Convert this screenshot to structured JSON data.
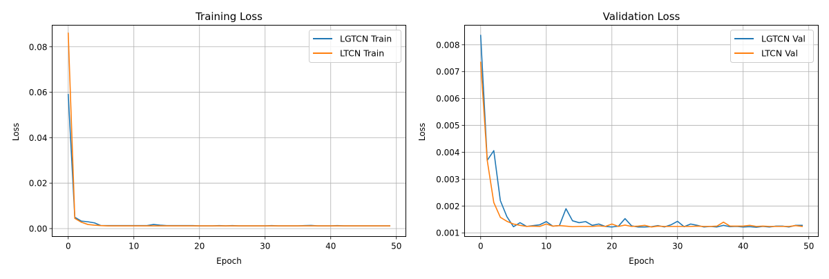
{
  "chart_data": [
    {
      "type": "line",
      "title": "Training Loss",
      "xlabel": "Epoch",
      "ylabel": "Loss",
      "xlim": [
        -2.45,
        51.45
      ],
      "ylim": [
        -0.0035,
        0.0895
      ],
      "xticks": [
        0,
        10,
        20,
        30,
        40,
        50
      ],
      "xtick_labels": [
        "0",
        "10",
        "20",
        "30",
        "40",
        "50"
      ],
      "yticks": [
        0,
        0.02,
        0.04,
        0.06,
        0.08
      ],
      "ytick_labels": [
        "0.00",
        "0.02",
        "0.04",
        "0.06",
        "0.08"
      ],
      "grid": true,
      "legend_position": "top-right",
      "x": [
        0,
        1,
        2,
        3,
        4,
        5,
        6,
        7,
        8,
        9,
        10,
        11,
        12,
        13,
        14,
        15,
        16,
        17,
        18,
        19,
        20,
        21,
        22,
        23,
        24,
        25,
        26,
        27,
        28,
        29,
        30,
        31,
        32,
        33,
        34,
        35,
        36,
        37,
        38,
        39,
        40,
        41,
        42,
        43,
        44,
        45,
        46,
        47,
        48,
        49
      ],
      "series": [
        {
          "name": "LGTCN Train",
          "color": "#1f77b4",
          "values": [
            0.059,
            0.005,
            0.0033,
            0.003,
            0.0025,
            0.0013,
            0.0013,
            0.0013,
            0.0013,
            0.0013,
            0.0013,
            0.0013,
            0.0013,
            0.0018,
            0.0015,
            0.0013,
            0.0013,
            0.0013,
            0.0013,
            0.0013,
            0.0012,
            0.0012,
            0.0012,
            0.0013,
            0.0012,
            0.0013,
            0.0012,
            0.0012,
            0.0012,
            0.0012,
            0.0012,
            0.0013,
            0.0012,
            0.0012,
            0.0012,
            0.0012,
            0.0013,
            0.0014,
            0.0012,
            0.0012,
            0.0012,
            0.0013,
            0.0012,
            0.0012,
            0.0012,
            0.0012,
            0.0012,
            0.0012,
            0.0012,
            0.0012
          ]
        },
        {
          "name": "LTCN Train",
          "color": "#ff7f0e",
          "values": [
            0.086,
            0.0045,
            0.0028,
            0.0018,
            0.0015,
            0.0013,
            0.0012,
            0.0012,
            0.0012,
            0.0012,
            0.0012,
            0.0012,
            0.0012,
            0.0012,
            0.0012,
            0.0012,
            0.0012,
            0.0012,
            0.0012,
            0.0012,
            0.0012,
            0.0012,
            0.0012,
            0.0012,
            0.0012,
            0.0012,
            0.0012,
            0.0012,
            0.0012,
            0.0012,
            0.0012,
            0.0012,
            0.0012,
            0.0012,
            0.0012,
            0.0012,
            0.0012,
            0.0012,
            0.0012,
            0.0012,
            0.0012,
            0.0012,
            0.0012,
            0.0012,
            0.0012,
            0.0012,
            0.0012,
            0.0012,
            0.0012,
            0.0012
          ]
        }
      ]
    },
    {
      "type": "line",
      "title": "Validation Loss",
      "xlabel": "Epoch",
      "ylabel": "Loss",
      "xlim": [
        -2.45,
        51.45
      ],
      "ylim": [
        0.000864,
        0.008728
      ],
      "xticks": [
        0,
        10,
        20,
        30,
        40,
        50
      ],
      "xtick_labels": [
        "0",
        "10",
        "20",
        "30",
        "40",
        "50"
      ],
      "yticks": [
        0.001,
        0.002,
        0.003,
        0.004,
        0.005,
        0.006,
        0.007,
        0.008
      ],
      "ytick_labels": [
        "0.001",
        "0.002",
        "0.003",
        "0.004",
        "0.005",
        "0.006",
        "0.007",
        "0.008"
      ],
      "grid": true,
      "legend_position": "top-right",
      "x": [
        0,
        1,
        2,
        3,
        4,
        5,
        6,
        7,
        8,
        9,
        10,
        11,
        12,
        13,
        14,
        15,
        16,
        17,
        18,
        19,
        20,
        21,
        22,
        23,
        24,
        25,
        26,
        27,
        28,
        29,
        30,
        31,
        32,
        33,
        34,
        35,
        36,
        37,
        38,
        39,
        40,
        41,
        42,
        43,
        44,
        45,
        46,
        47,
        48,
        49
      ],
      "series": [
        {
          "name": "LGTCN Val",
          "color": "#1f77b4",
          "values": [
            0.00835,
            0.0037,
            0.00406,
            0.0022,
            0.0016,
            0.00123,
            0.00138,
            0.00124,
            0.00127,
            0.0013,
            0.00142,
            0.00125,
            0.00127,
            0.0019,
            0.00145,
            0.00138,
            0.00142,
            0.00128,
            0.00133,
            0.00124,
            0.00122,
            0.00125,
            0.00153,
            0.00126,
            0.00122,
            0.00122,
            0.00123,
            0.00127,
            0.00122,
            0.0013,
            0.00143,
            0.00123,
            0.00133,
            0.00128,
            0.00122,
            0.00124,
            0.00122,
            0.00128,
            0.00123,
            0.00124,
            0.00122,
            0.00123,
            0.00121,
            0.00124,
            0.00122,
            0.00125,
            0.00125,
            0.00122,
            0.00128,
            0.00128
          ]
        },
        {
          "name": "LTCN Val",
          "color": "#ff7f0e",
          "values": [
            0.00735,
            0.0037,
            0.00213,
            0.00158,
            0.00143,
            0.00133,
            0.00128,
            0.00124,
            0.00125,
            0.00124,
            0.00133,
            0.00125,
            0.00127,
            0.00125,
            0.00123,
            0.00124,
            0.00124,
            0.00124,
            0.00126,
            0.00124,
            0.00133,
            0.00124,
            0.00129,
            0.00124,
            0.00125,
            0.00128,
            0.00122,
            0.00125,
            0.00124,
            0.00124,
            0.00124,
            0.00124,
            0.00124,
            0.00125,
            0.00124,
            0.00124,
            0.00125,
            0.0014,
            0.00125,
            0.00125,
            0.00125,
            0.00128,
            0.00124,
            0.00125,
            0.00124,
            0.00124,
            0.00124,
            0.00124,
            0.00127,
            0.00124
          ]
        }
      ]
    }
  ]
}
